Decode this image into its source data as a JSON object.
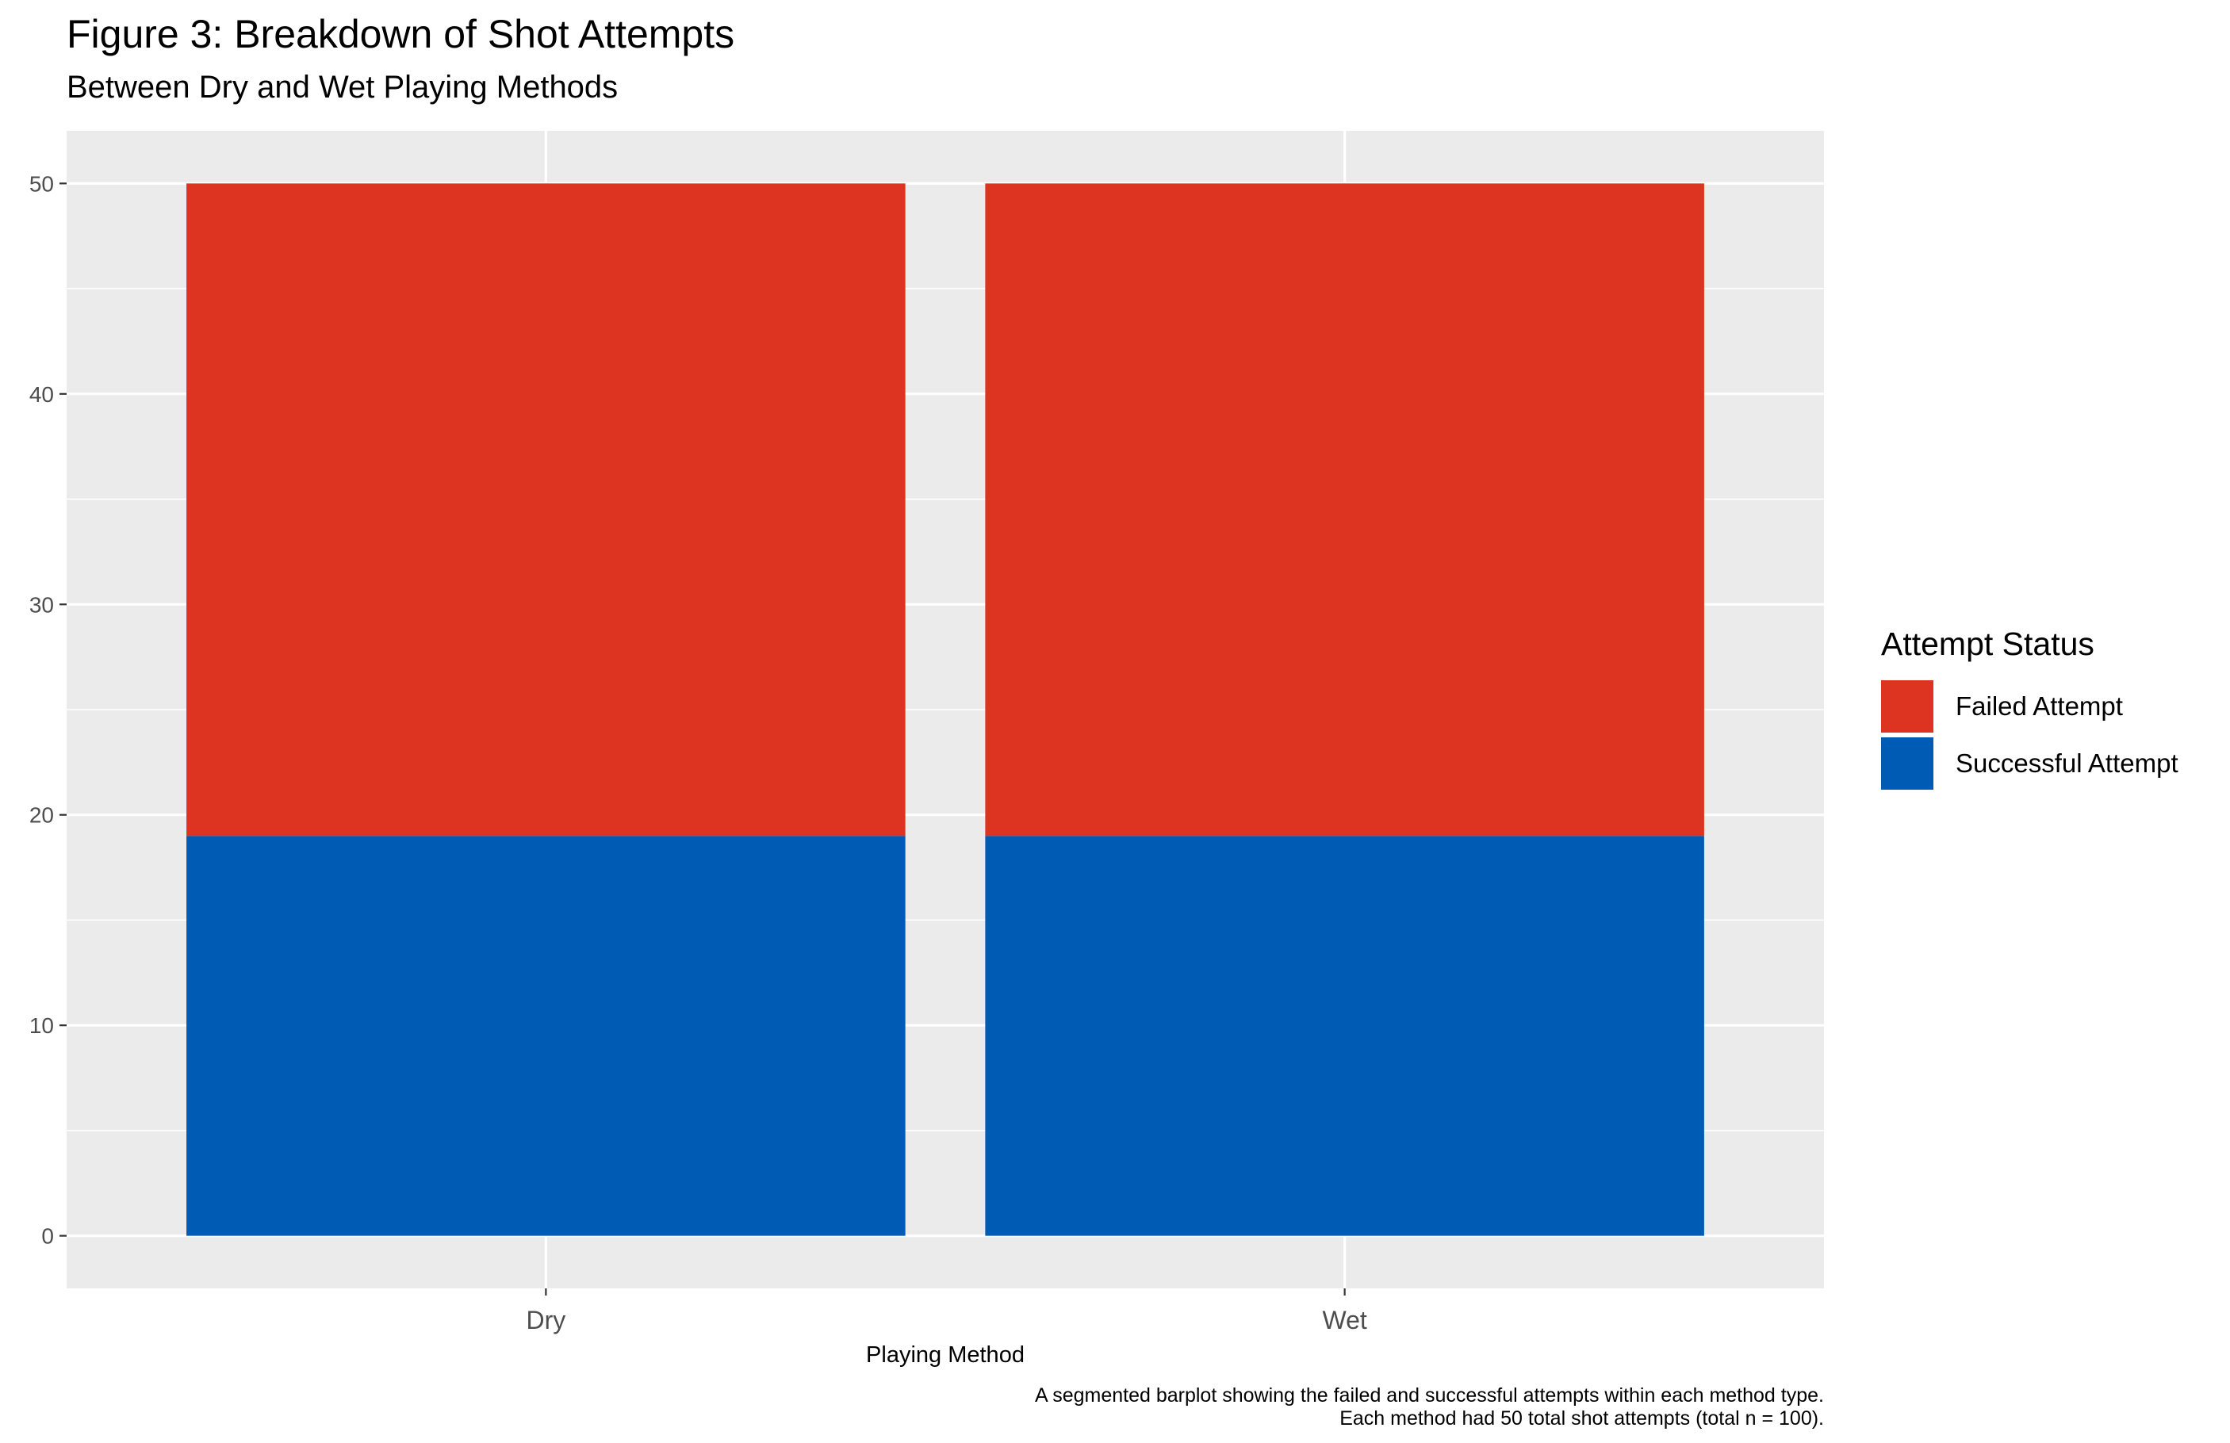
{
  "chart_data": {
    "type": "bar",
    "stacked": true,
    "title": "Figure 3: Breakdown of Shot Attempts",
    "subtitle": "Between Dry and Wet Playing Methods",
    "xlabel": "Playing Method",
    "ylabel": "",
    "categories": [
      "Dry",
      "Wet"
    ],
    "ylim": [
      -2.5,
      52.5
    ],
    "yticks": [
      0,
      10,
      20,
      30,
      40,
      50
    ],
    "grid": true,
    "legend_title": "Attempt Status",
    "legend_position": "right",
    "series": [
      {
        "name": "Failed Attempt",
        "values": [
          31,
          31
        ],
        "color": "#dc3421"
      },
      {
        "name": "Successful Attempt",
        "values": [
          19,
          19
        ],
        "color": "#005bb5"
      }
    ],
    "caption": [
      "A segmented barplot showing the failed and successful attempts within each method type.",
      "Each method had 50 total shot attempts (total n = 100)."
    ]
  }
}
